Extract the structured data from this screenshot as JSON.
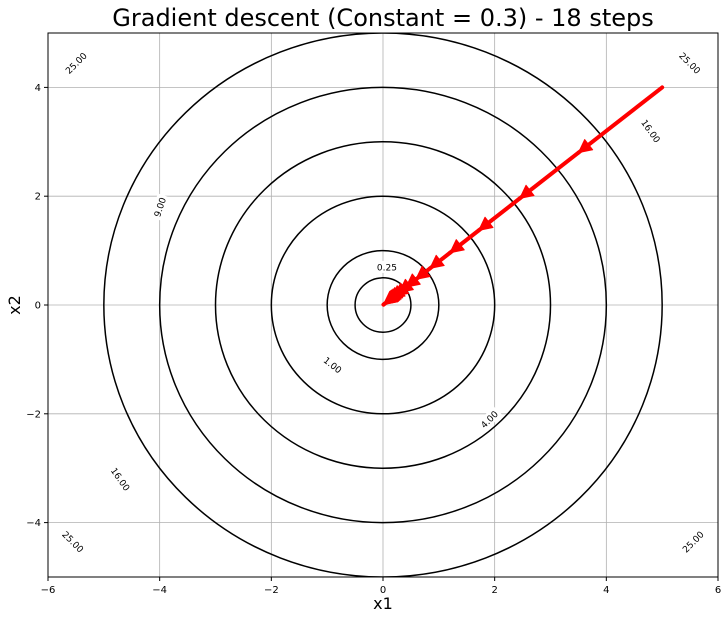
{
  "chart_data": {
    "type": "line",
    "title": "Gradient descent (Constant = 0.3) - 18 steps",
    "xlabel": "x1",
    "ylabel": "x2",
    "xlim": [
      -6,
      6
    ],
    "ylim": [
      -5,
      5
    ],
    "x_ticks": [
      -6,
      -4,
      -2,
      0,
      2,
      4,
      6
    ],
    "y_ticks": [
      -4,
      -2,
      0,
      2,
      4
    ],
    "grid": true,
    "contours": [
      {
        "level": 0.25,
        "label": "0.25",
        "labels": [
          {
            "x": 0.07,
            "y": 0.7,
            "angle": 0
          }
        ]
      },
      {
        "level": 1.0,
        "label": "1.00",
        "labels": [
          {
            "x": -0.9,
            "y": -1.1,
            "angle": 38
          }
        ]
      },
      {
        "level": 4.0,
        "label": "4.00",
        "labels": [
          {
            "x": 1.9,
            "y": -2.1,
            "angle": -45
          }
        ]
      },
      {
        "level": 9.0,
        "label": "9.00",
        "labels": [
          {
            "x": -4.0,
            "y": 1.8,
            "angle": -72
          }
        ]
      },
      {
        "level": 16.0,
        "label": "16.00",
        "labels": [
          {
            "x": -4.7,
            "y": -3.2,
            "angle": 55
          },
          {
            "x": 4.8,
            "y": 3.2,
            "angle": 55
          }
        ]
      },
      {
        "level": 25.0,
        "label": "25.00",
        "labels": [
          {
            "x": -5.5,
            "y": 4.45,
            "angle": -45
          },
          {
            "x": 5.5,
            "y": 4.45,
            "angle": 45
          },
          {
            "x": -5.55,
            "y": -4.35,
            "angle": 45
          },
          {
            "x": 5.55,
            "y": -4.35,
            "angle": -45
          }
        ]
      }
    ],
    "path_color": "#ff0000",
    "path": [
      {
        "x": 5.0,
        "y": 4.0
      },
      {
        "x": 3.5,
        "y": 2.8
      },
      {
        "x": 2.45,
        "y": 1.96
      },
      {
        "x": 1.715,
        "y": 1.372
      },
      {
        "x": 1.2005,
        "y": 0.9604
      },
      {
        "x": 0.8404,
        "y": 0.6723
      },
      {
        "x": 0.5882,
        "y": 0.4706
      },
      {
        "x": 0.4118,
        "y": 0.3294
      },
      {
        "x": 0.2882,
        "y": 0.2306
      },
      {
        "x": 0.2018,
        "y": 0.1614
      },
      {
        "x": 0.1412,
        "y": 0.113
      },
      {
        "x": 0.0989,
        "y": 0.0791
      },
      {
        "x": 0.0692,
        "y": 0.0554
      },
      {
        "x": 0.0484,
        "y": 0.0388
      },
      {
        "x": 0.0339,
        "y": 0.0271
      },
      {
        "x": 0.0237,
        "y": 0.019
      },
      {
        "x": 0.0166,
        "y": 0.0133
      },
      {
        "x": 0.0116,
        "y": 0.0093
      },
      {
        "x": 0.0081,
        "y": 0.0065
      }
    ]
  }
}
